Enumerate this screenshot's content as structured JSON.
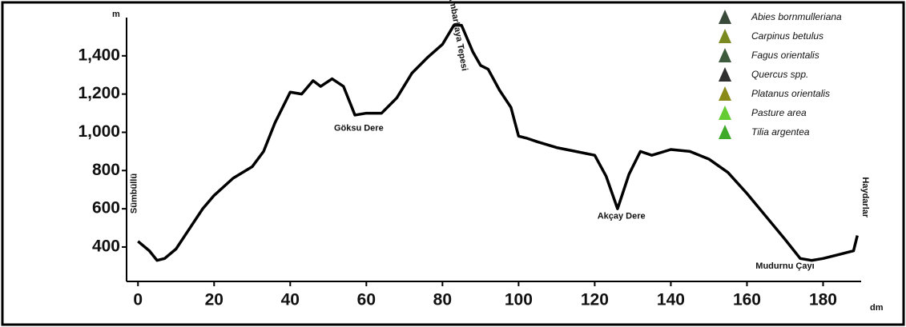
{
  "chart_data": {
    "type": "line",
    "y_label": "m",
    "x_label": "dm",
    "x": [
      0,
      3,
      5,
      7,
      10,
      13,
      17,
      20,
      25,
      30,
      33,
      36,
      40,
      43,
      46,
      48,
      51,
      54,
      57,
      60,
      64,
      68,
      72,
      76,
      80,
      83,
      85,
      88,
      90,
      92,
      95,
      98,
      100,
      102,
      105,
      110,
      115,
      120,
      123,
      126,
      129,
      132,
      135,
      140,
      145,
      150,
      155,
      160,
      165,
      170,
      174,
      177,
      180,
      184,
      188,
      189
    ],
    "series": [
      {
        "color": "#000000",
        "values": [
          430,
          380,
          330,
          340,
          390,
          480,
          600,
          670,
          760,
          820,
          900,
          1050,
          1210,
          1200,
          1270,
          1240,
          1280,
          1240,
          1090,
          1100,
          1100,
          1180,
          1310,
          1390,
          1460,
          1560,
          1560,
          1420,
          1350,
          1330,
          1220,
          1130,
          980,
          970,
          950,
          920,
          900,
          880,
          770,
          600,
          780,
          900,
          880,
          910,
          900,
          860,
          790,
          680,
          560,
          440,
          340,
          330,
          340,
          360,
          380,
          460
        ]
      }
    ],
    "xlim": [
      -3,
      190
    ],
    "ylim": [
      220,
      1600
    ],
    "xticks": [
      0,
      20,
      40,
      60,
      80,
      100,
      120,
      140,
      160,
      180
    ],
    "yticks": [
      400,
      600,
      800,
      {
        "value": 1000,
        "label": "1,000"
      },
      {
        "value": 1200,
        "label": "1,200"
      },
      {
        "value": 1400,
        "label": "1,400"
      }
    ],
    "annotations": [
      {
        "text": "Göksu Dere",
        "x": 58,
        "y": 1020
      },
      {
        "text": "Akçay Dere",
        "x": 127,
        "y": 560
      },
      {
        "text": "Mudurnu Çayı",
        "x": 170,
        "y": 300
      },
      {
        "text": "Ambarkaya Tepesi",
        "x": 84,
        "y": 1520,
        "rotate": 80
      },
      {
        "text": "Sümbüllü",
        "x": -1,
        "y": 680,
        "rotate": -90
      },
      {
        "text": "Haydarlar",
        "x": 191,
        "y": 660,
        "rotate": 90
      }
    ],
    "legend": [
      {
        "name": "Abies bornmulleriana",
        "color": "#3a4a3a"
      },
      {
        "name": "Carpinus betulus",
        "color": "#7a8a20"
      },
      {
        "name": "Fagus orientalis",
        "color": "#3d5a3d"
      },
      {
        "name": "Quercus spp.",
        "color": "#2e2e2e"
      },
      {
        "name": "Platanus orientalis",
        "color": "#8a8a18"
      },
      {
        "name": "Pasture area",
        "color": "#66cc33"
      },
      {
        "name": "Tilia argentea",
        "color": "#3faa2a"
      }
    ]
  }
}
